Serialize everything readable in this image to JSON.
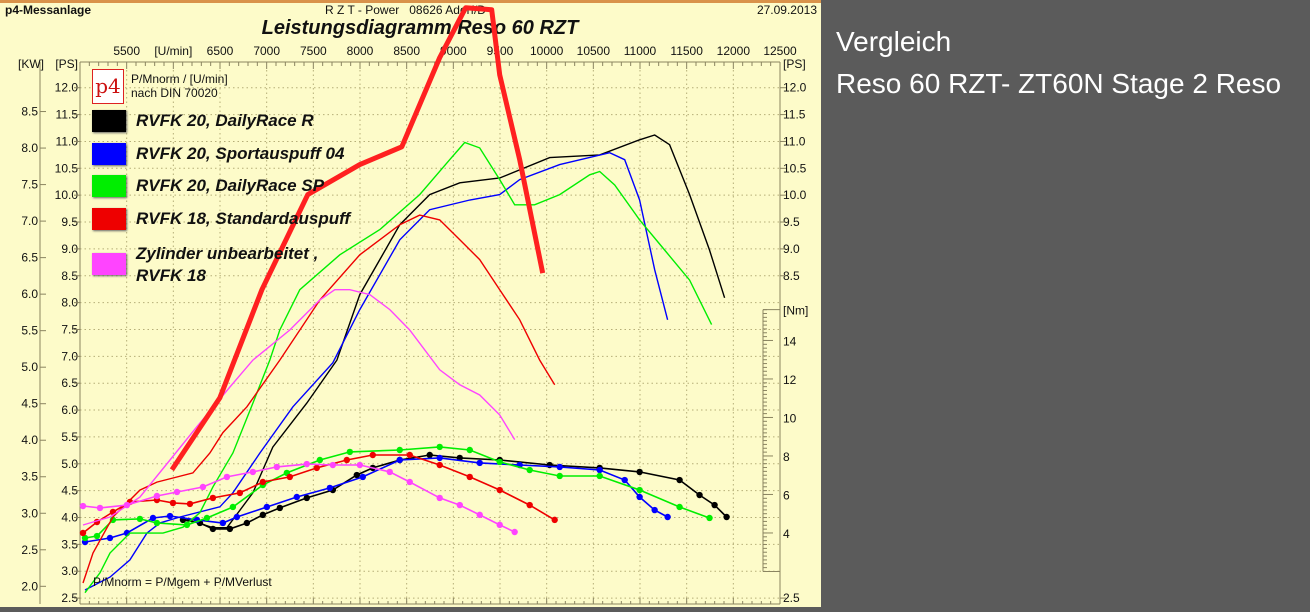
{
  "header": {
    "app": "p4-Messanlage",
    "center": "R Z T - Power   08626 Adorf/D",
    "date": "27.09.2013"
  },
  "side_text": {
    "line1": "Vergleich",
    "line2": "Reso 60 RZT- ZT60N Stage 2 Reso"
  },
  "logo_text": "p4",
  "legend_note": {
    "line1": "P/Mnorm / [U/min]",
    "line2": "nach DIN 70020"
  },
  "footnote": "P/Mnorm = P/Mgem + P/MVerlust",
  "chart_data": {
    "type": "line",
    "title": "Leistungsdiagramm Reso 60 RZT",
    "xlabel": "[U/min]",
    "ylabel_kw": "[KW]",
    "ylabel_ps": "[PS]",
    "ylabel_nm": "[Nm]",
    "xlim": [
      5000,
      12500
    ],
    "ylim_ps": [
      2.39,
      12.33
    ],
    "ylim_nm": [
      0.31,
      28.05
    ],
    "grid": true,
    "legend_position": "top-left",
    "x_ticks": [
      "5500",
      "6500",
      "7000",
      "7500",
      "8000",
      "8500",
      "9000",
      "9500",
      "10000",
      "10500",
      "11000",
      "11500",
      "12000",
      "12500"
    ],
    "ps_ticks_left": [
      "12.0",
      "11.5",
      "11.0",
      "10.5",
      "10.0",
      "9.5",
      "9.0",
      "8.5",
      "8.0",
      "7.5",
      "7.0",
      "6.5",
      "6.0",
      "5.5",
      "5.0",
      "4.5",
      "4.0",
      "3.5",
      "3.0",
      "2.5"
    ],
    "ps_ticks_right": [
      "12.0",
      "11.5",
      "11.0",
      "10.5",
      "10.0",
      "9.5",
      "9.0",
      "8.5",
      "2.5"
    ],
    "kw_ticks": [
      "8.5",
      "8.0",
      "7.5",
      "7.0",
      "6.5",
      "6.0",
      "5.5",
      "5.0",
      "4.5",
      "4.0",
      "3.5",
      "3.0",
      "2.5",
      "2.0"
    ],
    "nm_ticks": [
      "14",
      "12",
      "10",
      "8",
      "6",
      "4"
    ],
    "series": [
      {
        "name": "RVFK 20, DailyRace R",
        "color": "#000000",
        "power_ps": [
          [
            6071,
            4.01
          ],
          [
            6424,
            3.81
          ],
          [
            6574,
            3.81
          ],
          [
            6852,
            4.46
          ],
          [
            7066,
            5.31
          ],
          [
            7430,
            6.13
          ],
          [
            7752,
            6.93
          ],
          [
            7998,
            8.15
          ],
          [
            8426,
            9.45
          ],
          [
            8747,
            10.01
          ],
          [
            9069,
            10.23
          ],
          [
            9497,
            10.32
          ],
          [
            10032,
            10.7
          ],
          [
            10568,
            10.75
          ],
          [
            10996,
            11.03
          ],
          [
            11157,
            11.12
          ],
          [
            11317,
            10.94
          ],
          [
            11531,
            10.01
          ],
          [
            11745,
            8.98
          ],
          [
            11906,
            8.09
          ]
        ],
        "torque_nm": [
          [
            6103,
            4.68
          ],
          [
            6285,
            4.52
          ],
          [
            6424,
            4.21
          ],
          [
            6606,
            4.21
          ],
          [
            6788,
            4.52
          ],
          [
            6959,
            4.94
          ],
          [
            7141,
            5.3
          ],
          [
            7430,
            5.82
          ],
          [
            7709,
            6.23
          ],
          [
            7966,
            7.01
          ],
          [
            8137,
            7.38
          ],
          [
            8426,
            7.79
          ],
          [
            8747,
            8.05
          ],
          [
            9069,
            7.9
          ],
          [
            9497,
            7.79
          ],
          [
            10032,
            7.53
          ],
          [
            10568,
            7.38
          ],
          [
            10996,
            7.17
          ],
          [
            11424,
            6.75
          ],
          [
            11638,
            5.97
          ],
          [
            11799,
            5.45
          ],
          [
            11928,
            4.83
          ]
        ]
      },
      {
        "name": "RVFK 20, Sportauspuff 04",
        "color": "#0000ff",
        "power_ps": [
          [
            5054,
            2.65
          ],
          [
            5321,
            2.89
          ],
          [
            5535,
            3.21
          ],
          [
            5717,
            3.71
          ],
          [
            5857,
            3.9
          ],
          [
            6071,
            4.01
          ],
          [
            6499,
            4.2
          ],
          [
            6638,
            4.46
          ],
          [
            6927,
            5.2
          ],
          [
            7281,
            6.06
          ],
          [
            7709,
            6.88
          ],
          [
            7998,
            7.87
          ],
          [
            8426,
            9.17
          ],
          [
            8747,
            9.73
          ],
          [
            9176,
            9.91
          ],
          [
            9497,
            10.01
          ],
          [
            9711,
            10.29
          ],
          [
            10140,
            10.57
          ],
          [
            10675,
            10.79
          ],
          [
            10836,
            10.66
          ],
          [
            10996,
            9.91
          ],
          [
            11157,
            8.61
          ],
          [
            11296,
            7.68
          ]
        ],
        "torque_nm": [
          [
            5054,
            3.53
          ],
          [
            5321,
            3.74
          ],
          [
            5503,
            4.0
          ],
          [
            5782,
            4.78
          ],
          [
            5964,
            4.88
          ],
          [
            6253,
            4.68
          ],
          [
            6531,
            4.52
          ],
          [
            6681,
            4.83
          ],
          [
            7002,
            5.35
          ],
          [
            7323,
            5.87
          ],
          [
            7677,
            6.34
          ],
          [
            8030,
            6.91
          ],
          [
            8426,
            7.79
          ],
          [
            8854,
            7.9
          ],
          [
            9283,
            7.64
          ],
          [
            9711,
            7.53
          ],
          [
            10140,
            7.43
          ],
          [
            10568,
            7.27
          ],
          [
            10836,
            6.75
          ],
          [
            10996,
            5.87
          ],
          [
            11157,
            5.19
          ],
          [
            11296,
            4.83
          ]
        ]
      },
      {
        "name": "RVFK 20, DailyRace SP",
        "color": "#00ee00",
        "power_ps": [
          [
            5054,
            2.6
          ],
          [
            5214,
            2.97
          ],
          [
            5321,
            3.34
          ],
          [
            5535,
            3.71
          ],
          [
            5889,
            3.71
          ],
          [
            6103,
            3.82
          ],
          [
            6285,
            4.09
          ],
          [
            6424,
            4.57
          ],
          [
            6638,
            5.2
          ],
          [
            6852,
            6.13
          ],
          [
            7034,
            6.93
          ],
          [
            7141,
            7.49
          ],
          [
            7355,
            8.24
          ],
          [
            7784,
            8.89
          ],
          [
            8212,
            9.36
          ],
          [
            8640,
            10.01
          ],
          [
            8961,
            10.66
          ],
          [
            9122,
            10.98
          ],
          [
            9283,
            10.88
          ],
          [
            9497,
            10.29
          ],
          [
            9657,
            9.82
          ],
          [
            9871,
            9.82
          ],
          [
            10140,
            10.01
          ],
          [
            10461,
            10.38
          ],
          [
            10568,
            10.44
          ],
          [
            10729,
            10.19
          ],
          [
            10996,
            9.54
          ],
          [
            11264,
            8.98
          ],
          [
            11531,
            8.42
          ],
          [
            11767,
            7.59
          ]
        ],
        "torque_nm": [
          [
            5054,
            3.74
          ],
          [
            5182,
            3.84
          ],
          [
            5353,
            4.68
          ],
          [
            5642,
            4.73
          ],
          [
            5824,
            4.52
          ],
          [
            6146,
            4.42
          ],
          [
            6360,
            4.78
          ],
          [
            6638,
            5.35
          ],
          [
            6959,
            6.49
          ],
          [
            7216,
            7.12
          ],
          [
            7570,
            7.79
          ],
          [
            7891,
            8.21
          ],
          [
            8426,
            8.31
          ],
          [
            8854,
            8.47
          ],
          [
            9176,
            8.31
          ],
          [
            9497,
            7.69
          ],
          [
            9818,
            7.27
          ],
          [
            10140,
            6.96
          ],
          [
            10568,
            6.96
          ],
          [
            10996,
            6.23
          ],
          [
            11424,
            5.35
          ],
          [
            11745,
            4.78
          ]
        ]
      },
      {
        "name": "RVFK 18, Standardauspuff",
        "color": "#ee0000",
        "power_ps": [
          [
            5032,
            2.78
          ],
          [
            5139,
            3.34
          ],
          [
            5353,
            4.01
          ],
          [
            5642,
            4.51
          ],
          [
            5824,
            4.66
          ],
          [
            6210,
            4.83
          ],
          [
            6392,
            5.2
          ],
          [
            6531,
            5.58
          ],
          [
            6788,
            6.06
          ],
          [
            7141,
            6.93
          ],
          [
            7570,
            8.05
          ],
          [
            7998,
            8.89
          ],
          [
            8426,
            9.45
          ],
          [
            8640,
            9.63
          ],
          [
            8854,
            9.54
          ],
          [
            9069,
            9.17
          ],
          [
            9283,
            8.8
          ],
          [
            9497,
            8.24
          ],
          [
            9711,
            7.68
          ],
          [
            9925,
            6.93
          ],
          [
            10086,
            6.47
          ]
        ],
        "torque_nm": [
          [
            5032,
            4.0
          ],
          [
            5182,
            4.57
          ],
          [
            5353,
            5.09
          ],
          [
            5535,
            5.61
          ],
          [
            5824,
            5.71
          ],
          [
            5996,
            5.56
          ],
          [
            6178,
            5.51
          ],
          [
            6424,
            5.82
          ],
          [
            6713,
            6.08
          ],
          [
            6959,
            6.65
          ],
          [
            7248,
            6.91
          ],
          [
            7537,
            7.38
          ],
          [
            7859,
            7.79
          ],
          [
            8137,
            8.05
          ],
          [
            8533,
            8.05
          ],
          [
            8854,
            7.53
          ],
          [
            9176,
            6.91
          ],
          [
            9497,
            6.23
          ],
          [
            9818,
            5.45
          ],
          [
            10086,
            4.68
          ]
        ]
      },
      {
        "name": "Zylinder unbearbeitet , RVFK 18",
        "name_line1": "Zylinder unbearbeitet ,",
        "name_line2": "RVFK 18",
        "color": "#ff44ff",
        "power_ps": [
          [
            5032,
            3.86
          ],
          [
            5321,
            4.01
          ],
          [
            5642,
            4.38
          ],
          [
            5964,
            5.07
          ],
          [
            6253,
            5.69
          ],
          [
            6606,
            6.43
          ],
          [
            6852,
            6.93
          ],
          [
            7248,
            7.49
          ],
          [
            7570,
            8.05
          ],
          [
            7730,
            8.24
          ],
          [
            7891,
            8.24
          ],
          [
            8105,
            8.15
          ],
          [
            8319,
            7.87
          ],
          [
            8533,
            7.49
          ],
          [
            8854,
            6.75
          ],
          [
            9069,
            6.47
          ],
          [
            9283,
            6.28
          ],
          [
            9497,
            5.91
          ],
          [
            9657,
            5.45
          ]
        ],
        "torque_nm": [
          [
            5032,
            5.4
          ],
          [
            5214,
            5.3
          ],
          [
            5503,
            5.45
          ],
          [
            5824,
            5.92
          ],
          [
            6039,
            6.13
          ],
          [
            6317,
            6.39
          ],
          [
            6574,
            6.91
          ],
          [
            6852,
            7.17
          ],
          [
            7109,
            7.43
          ],
          [
            7430,
            7.58
          ],
          [
            7709,
            7.53
          ],
          [
            7998,
            7.53
          ],
          [
            8319,
            7.17
          ],
          [
            8533,
            6.65
          ],
          [
            8854,
            5.82
          ],
          [
            9069,
            5.45
          ],
          [
            9283,
            4.94
          ],
          [
            9497,
            4.42
          ],
          [
            9657,
            4.05
          ]
        ]
      }
    ],
    "annotation_line": {
      "color": "#ff2020",
      "power_ps": [
        [
          5985,
          4.89
        ],
        [
          6499,
          6.23
        ],
        [
          6949,
          8.24
        ],
        [
          7441,
          10.01
        ],
        [
          7998,
          10.57
        ],
        [
          8448,
          10.9
        ],
        [
          8854,
          12.56
        ],
        [
          9133,
          13.49
        ],
        [
          9411,
          13.45
        ],
        [
          9497,
          12.24
        ],
        [
          9711,
          10.66
        ],
        [
          9957,
          8.55
        ]
      ]
    }
  }
}
